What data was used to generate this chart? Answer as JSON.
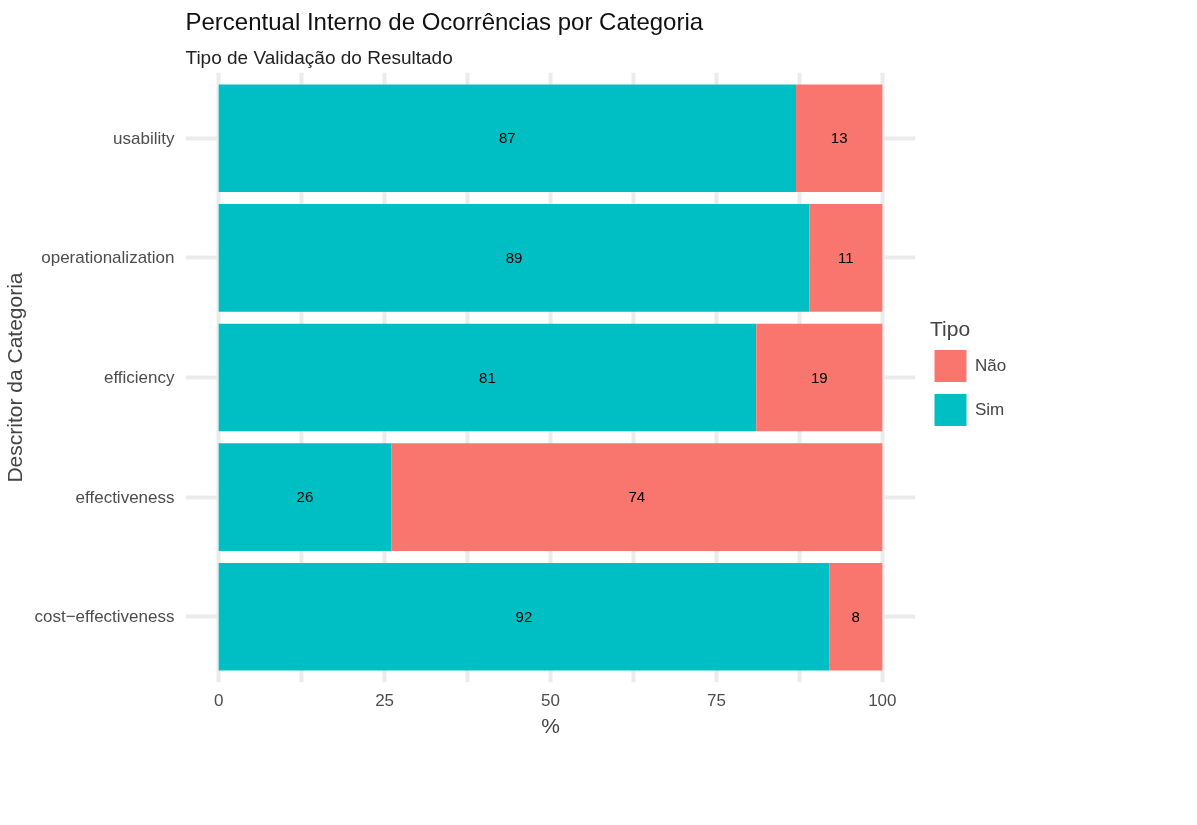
{
  "chart_data": {
    "type": "bar",
    "orientation": "horizontal",
    "stacked": true,
    "title": "Percentual Interno de Ocorrências por Categoria",
    "subtitle": "Tipo de Validação do Resultado",
    "xlabel": "%",
    "ylabel": "Descritor da Categoria",
    "legend_title": "Tipo",
    "categories": [
      "usability",
      "operationalization",
      "efficiency",
      "effectiveness",
      "cost−effectiveness"
    ],
    "series": [
      {
        "name": "Sim",
        "color": "#00bfc4",
        "values": [
          87,
          89,
          81,
          26,
          92
        ]
      },
      {
        "name": "Não",
        "color": "#f8766d",
        "values": [
          13,
          11,
          19,
          74,
          8
        ]
      }
    ],
    "xlim": [
      -5,
      105
    ],
    "xticks": [
      0,
      {
        "value": 12.5,
        "label": null
      },
      25,
      {
        "value": 37.5,
        "label": null
      },
      50,
      {
        "value": 62.5,
        "label": null
      },
      75,
      {
        "value": 87.5,
        "label": null
      },
      100
    ],
    "data_labels": true,
    "grid": true,
    "legend": "right"
  }
}
